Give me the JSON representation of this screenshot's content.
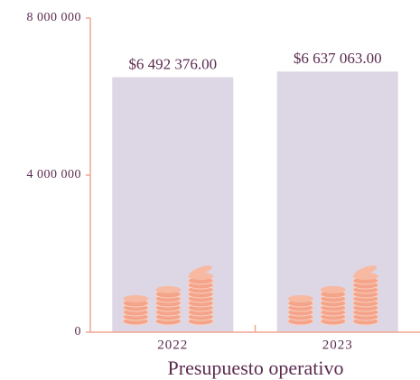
{
  "chart_data": {
    "type": "bar",
    "title": "Presupuesto operativo",
    "categories": [
      "2022",
      "2023"
    ],
    "values": [
      6492376,
      6637063
    ],
    "value_labels": [
      "$6 492 376.00",
      "$6 637 063.00"
    ],
    "color": "#ddd6e5",
    "ylim": [
      0,
      8000000
    ],
    "yticks": [
      0,
      {
        "value": 4000000,
        "label": "4 000 000"
      },
      {
        "value": 8000000,
        "label": "8 000 000"
      }
    ]
  }
}
